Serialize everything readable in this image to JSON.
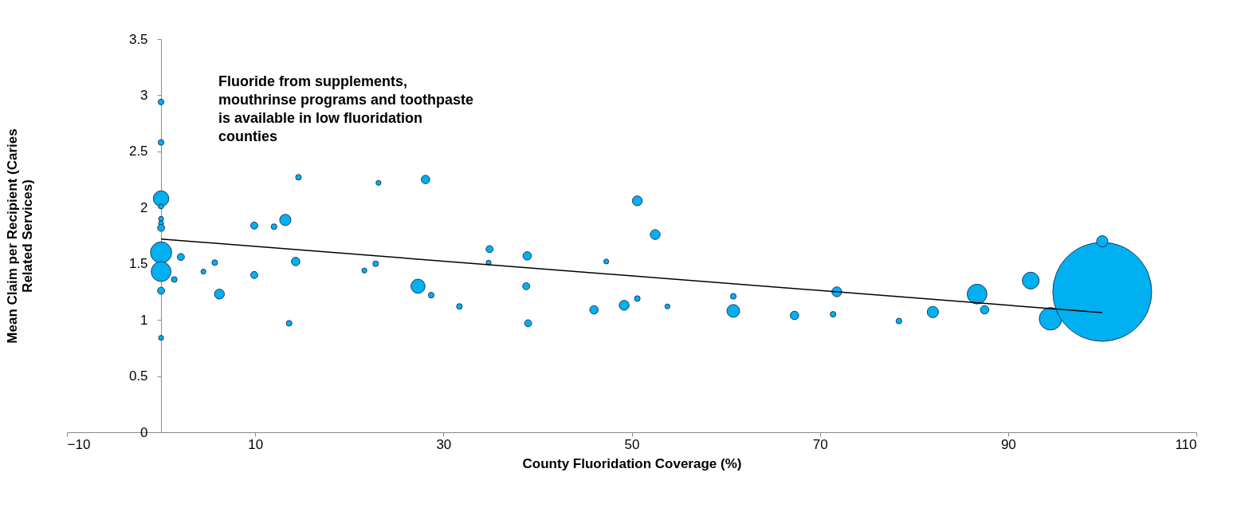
{
  "chart_data": {
    "type": "bubble",
    "xlabel": "County Fluoridation Coverage (%)",
    "ylabel": "Mean Claim per Recipient (Caries Related Services)",
    "annotations": [
      "Fluoride from supplements, mouthrinse programs and toothpaste is available in low fluoridation counties"
    ],
    "xlim": [
      -10,
      110
    ],
    "xticks": [
      -10,
      10,
      30,
      50,
      70,
      90,
      110
    ],
    "ylim": [
      0,
      3.5
    ],
    "yticks": [
      0,
      0.5,
      1,
      1.5,
      2,
      2.5,
      3,
      3.5
    ],
    "grid": false,
    "legend": false,
    "series": [
      {
        "color": "#00b0f0",
        "x": [
          0,
          0,
          0,
          0,
          0,
          0,
          0,
          0,
          0,
          0,
          0,
          2.1,
          1.4,
          4.5,
          5.7,
          6.2,
          9.9,
          9.9,
          12.0,
          13.2,
          13.6,
          14.3,
          14.6,
          21.6,
          22.8,
          23.1,
          27.3,
          28.1,
          28.7,
          31.7,
          34.9,
          34.8,
          38.9,
          38.8,
          39.0,
          47.3,
          46.0,
          49.2,
          50.6,
          50.6,
          52.5,
          53.8,
          60.8,
          60.8,
          67.3,
          71.4,
          71.8,
          78.4,
          82.0,
          86.7,
          87.5,
          92.4,
          94.5,
          100,
          100
        ],
        "values": [
          2.94,
          2.58,
          2.08,
          2.01,
          1.9,
          1.86,
          1.82,
          1.6,
          1.43,
          1.26,
          0.84,
          1.56,
          1.36,
          1.43,
          1.51,
          1.23,
          1.84,
          1.4,
          1.83,
          1.89,
          0.97,
          1.52,
          2.27,
          1.44,
          1.5,
          2.22,
          1.3,
          2.25,
          1.22,
          1.12,
          1.63,
          1.51,
          1.57,
          1.3,
          0.97,
          1.52,
          1.09,
          1.13,
          1.19,
          2.06,
          1.76,
          1.12,
          1.21,
          1.08,
          1.04,
          1.05,
          1.25,
          0.99,
          1.07,
          1.23,
          1.09,
          1.35,
          1.01,
          1.25,
          1.7
        ],
        "sizes": [
          0.0033,
          0.0033,
          0.0247,
          0.0025,
          0.0025,
          0.0025,
          0.0051,
          0.046,
          0.04,
          0.0051,
          0.0025,
          0.0051,
          0.0033,
          0.0025,
          0.0033,
          0.01,
          0.0051,
          0.0051,
          0.0033,
          0.013,
          0.0033,
          0.0073,
          0.0033,
          0.0025,
          0.0033,
          0.0025,
          0.0204,
          0.0073,
          0.0033,
          0.0033,
          0.0051,
          0.0025,
          0.0073,
          0.0051,
          0.0051,
          0.0025,
          0.0073,
          0.01,
          0.0033,
          0.01,
          0.01,
          0.0025,
          0.0033,
          0.0165,
          0.0073,
          0.0033,
          0.01,
          0.0033,
          0.013,
          0.04,
          0.0073,
          0.029,
          0.052,
          1,
          0.013
        ]
      },
      {
        "type": "line",
        "color": "#000000",
        "x": [
          0,
          100
        ],
        "values": [
          1.72,
          1.065
        ]
      }
    ]
  }
}
